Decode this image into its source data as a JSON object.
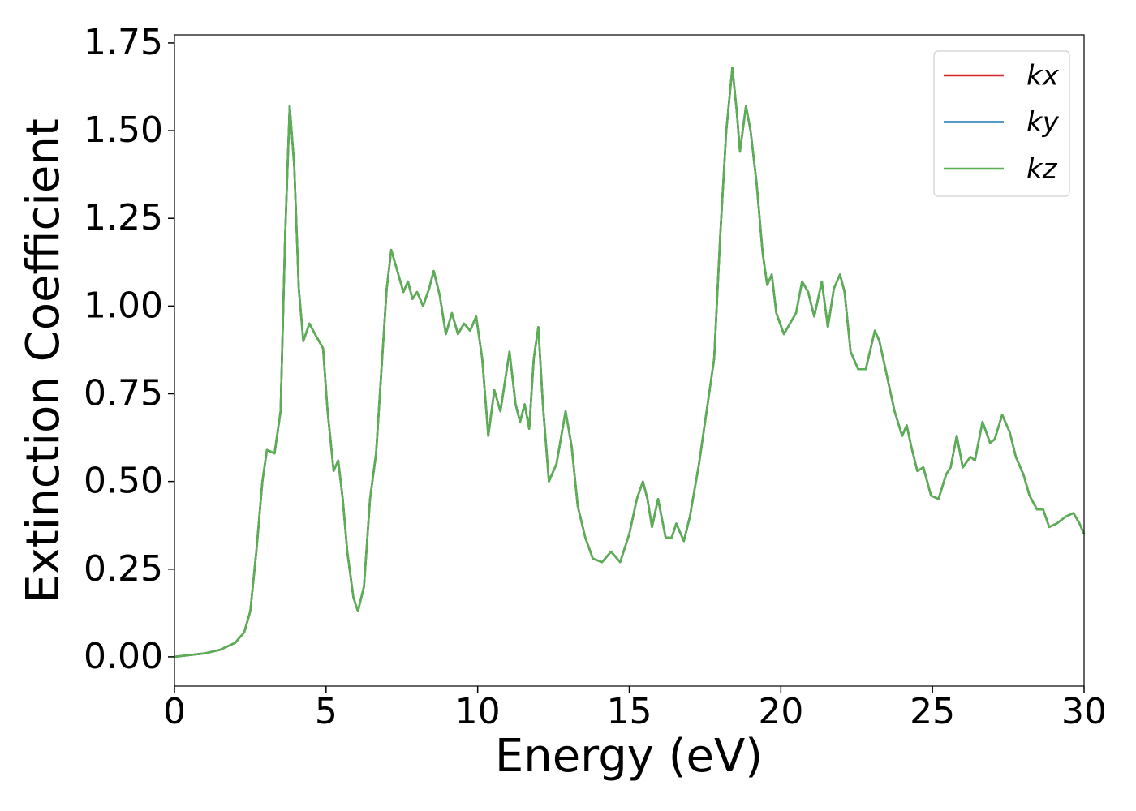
{
  "chart_data": {
    "type": "line",
    "xlabel": "Energy (eV)",
    "ylabel": "Extinction Coefficient",
    "x": [
      0,
      1,
      1.5,
      2,
      2.3,
      2.5,
      2.7,
      2.9,
      3.05,
      3.3,
      3.5,
      3.65,
      3.8,
      3.95,
      4.1,
      4.25,
      4.45,
      4.7,
      4.9,
      5.05,
      5.25,
      5.4,
      5.55,
      5.7,
      5.9,
      6.05,
      6.25,
      6.45,
      6.65,
      6.85,
      7.0,
      7.15,
      7.35,
      7.55,
      7.7,
      7.85,
      8.0,
      8.2,
      8.4,
      8.55,
      8.75,
      8.95,
      9.15,
      9.35,
      9.55,
      9.75,
      9.95,
      10.15,
      10.35,
      10.55,
      10.75,
      11.05,
      11.25,
      11.4,
      11.55,
      11.7,
      11.85,
      12.0,
      12.15,
      12.35,
      12.6,
      12.9,
      13.1,
      13.3,
      13.55,
      13.8,
      14.1,
      14.4,
      14.7,
      15.0,
      15.25,
      15.45,
      15.6,
      15.75,
      15.95,
      16.2,
      16.4,
      16.55,
      16.8,
      17.0,
      17.3,
      17.55,
      17.8,
      18.0,
      18.2,
      18.4,
      18.55,
      18.65,
      18.85,
      19.0,
      19.2,
      19.4,
      19.55,
      19.7,
      19.85,
      20.1,
      20.3,
      20.5,
      20.7,
      20.9,
      21.1,
      21.35,
      21.55,
      21.75,
      21.95,
      22.1,
      22.3,
      22.55,
      22.8,
      23.1,
      23.25,
      23.5,
      23.75,
      24.0,
      24.15,
      24.3,
      24.5,
      24.7,
      24.95,
      25.2,
      25.45,
      25.6,
      25.8,
      26.0,
      26.25,
      26.4,
      26.65,
      26.9,
      27.05,
      27.3,
      27.55,
      27.75,
      28.0,
      28.2,
      28.45,
      28.65,
      28.85,
      29.1,
      29.4,
      29.65,
      29.85,
      30
    ],
    "series": [
      {
        "name": "kx",
        "color": "#d62728",
        "values": [
          0,
          0.01,
          0.02,
          0.04,
          0.07,
          0.13,
          0.3,
          0.5,
          0.59,
          0.58,
          0.7,
          1.2,
          1.57,
          1.4,
          1.05,
          0.9,
          0.95,
          0.91,
          0.88,
          0.7,
          0.53,
          0.56,
          0.45,
          0.3,
          0.17,
          0.13,
          0.2,
          0.45,
          0.58,
          0.85,
          1.05,
          1.16,
          1.1,
          1.04,
          1.07,
          1.02,
          1.04,
          1.0,
          1.05,
          1.1,
          1.03,
          0.92,
          0.98,
          0.92,
          0.95,
          0.93,
          0.97,
          0.85,
          0.63,
          0.76,
          0.7,
          0.87,
          0.72,
          0.67,
          0.72,
          0.65,
          0.85,
          0.94,
          0.72,
          0.5,
          0.55,
          0.7,
          0.6,
          0.43,
          0.34,
          0.28,
          0.27,
          0.3,
          0.27,
          0.35,
          0.45,
          0.5,
          0.45,
          0.37,
          0.45,
          0.34,
          0.34,
          0.38,
          0.33,
          0.4,
          0.55,
          0.7,
          0.85,
          1.2,
          1.5,
          1.68,
          1.55,
          1.44,
          1.57,
          1.5,
          1.35,
          1.15,
          1.06,
          1.09,
          0.98,
          0.92,
          0.95,
          0.98,
          1.07,
          1.04,
          0.97,
          1.07,
          0.94,
          1.05,
          1.09,
          1.04,
          0.87,
          0.82,
          0.82,
          0.93,
          0.9,
          0.8,
          0.7,
          0.63,
          0.66,
          0.6,
          0.53,
          0.54,
          0.46,
          0.45,
          0.52,
          0.54,
          0.63,
          0.54,
          0.57,
          0.56,
          0.67,
          0.61,
          0.62,
          0.69,
          0.64,
          0.57,
          0.52,
          0.46,
          0.42,
          0.42,
          0.37,
          0.38,
          0.4,
          0.41,
          0.38,
          0.35
        ]
      },
      {
        "name": "ky",
        "color": "#1f77b4",
        "values": [
          0,
          0.01,
          0.02,
          0.04,
          0.07,
          0.13,
          0.3,
          0.5,
          0.59,
          0.58,
          0.7,
          1.2,
          1.57,
          1.4,
          1.05,
          0.9,
          0.95,
          0.91,
          0.88,
          0.7,
          0.53,
          0.56,
          0.45,
          0.3,
          0.17,
          0.13,
          0.2,
          0.45,
          0.58,
          0.85,
          1.05,
          1.16,
          1.1,
          1.04,
          1.07,
          1.02,
          1.04,
          1.0,
          1.05,
          1.1,
          1.03,
          0.92,
          0.98,
          0.92,
          0.95,
          0.93,
          0.97,
          0.85,
          0.63,
          0.76,
          0.7,
          0.87,
          0.72,
          0.67,
          0.72,
          0.65,
          0.85,
          0.94,
          0.72,
          0.5,
          0.55,
          0.7,
          0.6,
          0.43,
          0.34,
          0.28,
          0.27,
          0.3,
          0.27,
          0.35,
          0.45,
          0.5,
          0.45,
          0.37,
          0.45,
          0.34,
          0.34,
          0.38,
          0.33,
          0.4,
          0.55,
          0.7,
          0.85,
          1.2,
          1.5,
          1.68,
          1.55,
          1.44,
          1.57,
          1.5,
          1.35,
          1.15,
          1.06,
          1.09,
          0.98,
          0.92,
          0.95,
          0.98,
          1.07,
          1.04,
          0.97,
          1.07,
          0.94,
          1.05,
          1.09,
          1.04,
          0.87,
          0.82,
          0.82,
          0.93,
          0.9,
          0.8,
          0.7,
          0.63,
          0.66,
          0.6,
          0.53,
          0.54,
          0.46,
          0.45,
          0.52,
          0.54,
          0.63,
          0.54,
          0.57,
          0.56,
          0.67,
          0.61,
          0.62,
          0.69,
          0.64,
          0.57,
          0.52,
          0.46,
          0.42,
          0.42,
          0.37,
          0.38,
          0.4,
          0.41,
          0.38,
          0.35
        ]
      },
      {
        "name": "kz",
        "color": "#5aaf50",
        "values": [
          0,
          0.01,
          0.02,
          0.04,
          0.07,
          0.13,
          0.3,
          0.5,
          0.59,
          0.58,
          0.7,
          1.2,
          1.57,
          1.4,
          1.05,
          0.9,
          0.95,
          0.91,
          0.88,
          0.7,
          0.53,
          0.56,
          0.45,
          0.3,
          0.17,
          0.13,
          0.2,
          0.45,
          0.58,
          0.85,
          1.05,
          1.16,
          1.1,
          1.04,
          1.07,
          1.02,
          1.04,
          1.0,
          1.05,
          1.1,
          1.03,
          0.92,
          0.98,
          0.92,
          0.95,
          0.93,
          0.97,
          0.85,
          0.63,
          0.76,
          0.7,
          0.87,
          0.72,
          0.67,
          0.72,
          0.65,
          0.85,
          0.94,
          0.72,
          0.5,
          0.55,
          0.7,
          0.6,
          0.43,
          0.34,
          0.28,
          0.27,
          0.3,
          0.27,
          0.35,
          0.45,
          0.5,
          0.45,
          0.37,
          0.45,
          0.34,
          0.34,
          0.38,
          0.33,
          0.4,
          0.55,
          0.7,
          0.85,
          1.2,
          1.5,
          1.68,
          1.55,
          1.44,
          1.57,
          1.5,
          1.35,
          1.15,
          1.06,
          1.09,
          0.98,
          0.92,
          0.95,
          0.98,
          1.07,
          1.04,
          0.97,
          1.07,
          0.94,
          1.05,
          1.09,
          1.04,
          0.87,
          0.82,
          0.82,
          0.93,
          0.9,
          0.8,
          0.7,
          0.63,
          0.66,
          0.6,
          0.53,
          0.54,
          0.46,
          0.45,
          0.52,
          0.54,
          0.63,
          0.54,
          0.57,
          0.56,
          0.67,
          0.61,
          0.62,
          0.69,
          0.64,
          0.57,
          0.52,
          0.46,
          0.42,
          0.42,
          0.37,
          0.38,
          0.4,
          0.41,
          0.38,
          0.35
        ]
      }
    ],
    "xlim": [
      0,
      30
    ],
    "xticks": [
      0,
      5,
      10,
      15,
      20,
      25,
      30
    ],
    "ylim": [
      -0.0834,
      1.773
    ],
    "yticks": [
      {
        "value": 0,
        "label": "0.00"
      },
      {
        "value": 0.25,
        "label": "0.25"
      },
      {
        "value": 0.5,
        "label": "0.50"
      },
      {
        "value": 0.75,
        "label": "0.75"
      },
      {
        "value": 1.0,
        "label": "1.00"
      },
      {
        "value": 1.25,
        "label": "1.25"
      },
      {
        "value": 1.5,
        "label": "1.50"
      },
      {
        "value": 1.75,
        "label": "1.75"
      }
    ],
    "grid": false,
    "legend": "upper right"
  }
}
